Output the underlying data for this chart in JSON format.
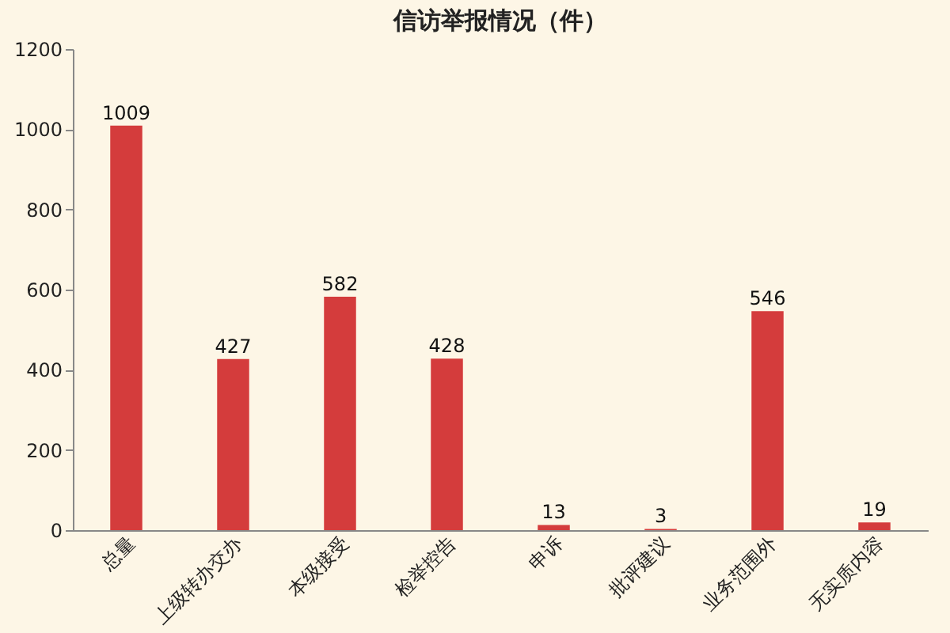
{
  "chart_data": {
    "type": "bar",
    "title": "信访举报情况（件）",
    "categories": [
      "总量",
      "上级转办交办",
      "本级接受",
      "检举控告",
      "申诉",
      "批评建议",
      "业务范围外",
      "无实质内容"
    ],
    "values": [
      1009,
      427,
      582,
      428,
      13,
      3,
      546,
      19
    ],
    "color": "#d43c3c",
    "ylim": [
      0,
      1200
    ],
    "yticks": [
      0,
      200,
      400,
      600,
      800,
      1000,
      1200
    ],
    "grid": false,
    "data_labels": true
  }
}
